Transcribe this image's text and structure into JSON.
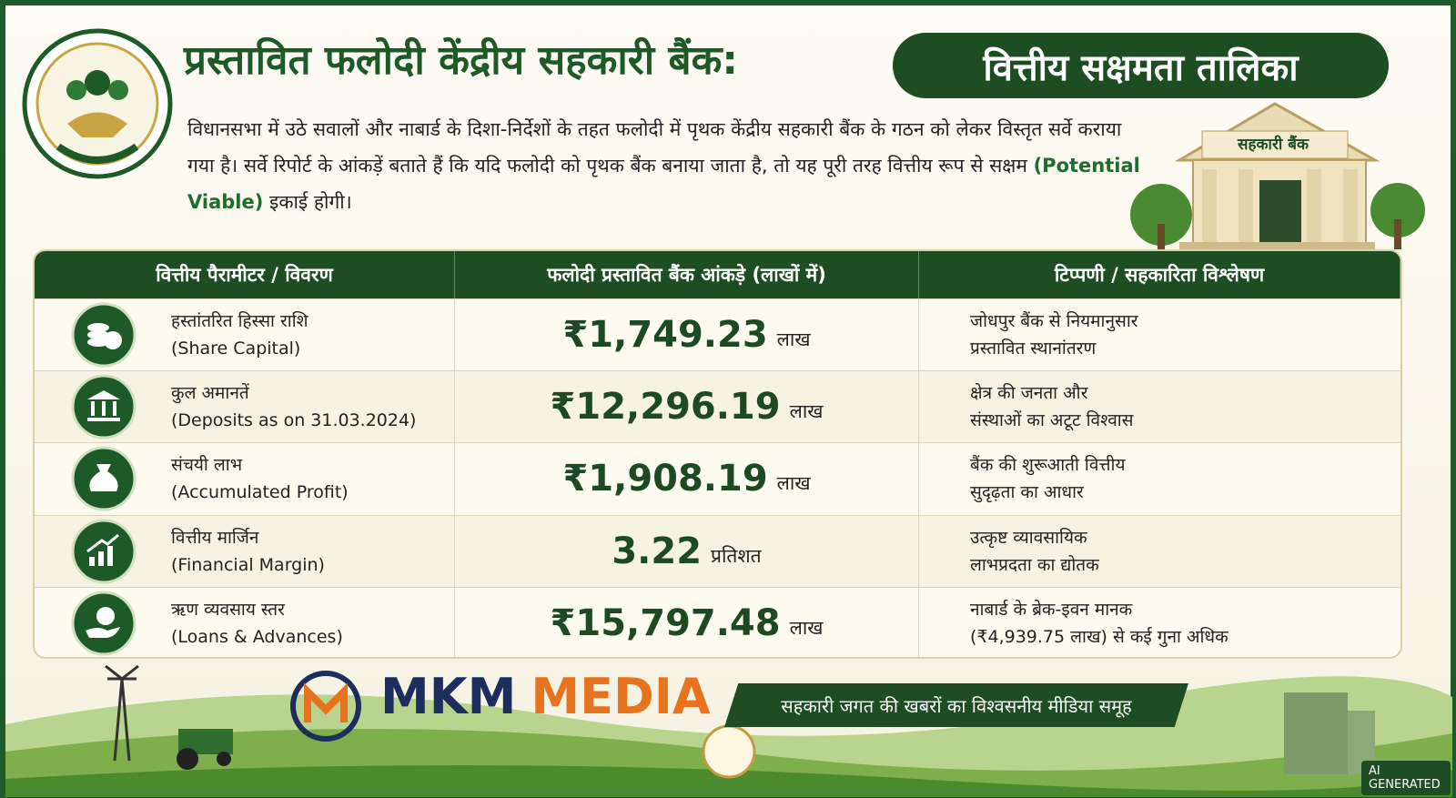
{
  "header": {
    "title": "प्रस्तावित फलोदी केंद्रीय सहकारी बैंक:",
    "title_badge": "वित्तीय सक्षमता तालिका",
    "intro": [
      "विधानसभा में उठे सवालों और नाबार्ड के दिशा-निर्देशों के तहत फलोदी में पृथक केंद्रीय सहकारी बैंक के गठन को लेकर विस्तृत सर्वे कराया गया है। सर्वे रिपोर्ट के आंकड़ें बताते हैं कि यदि फलोदी को पृथक बैंक बनाया जाता है, तो यह पूरी तरह वित्तीय रूप से सक्षम ",
      "(Potential Viable)",
      " इकाई होगी।"
    ],
    "building_sign": "सहकारी बैंक"
  },
  "table": {
    "columns": [
      "वित्तीय पैरामीटर / विवरण",
      "फलोदी प्रस्तावित बैंक आंकड़े (लाखों में)",
      "टिप्पणी / सहकारिता विश्लेषण"
    ],
    "rows": [
      {
        "label_hi": "हस्तांतरित हिस्सा राशि",
        "label_en": "(Share Capital)",
        "value": "₹1,749.23",
        "unit": "लाख",
        "note": [
          "जोधपुर बैंक से नियमानुसार",
          "प्रस्तावित स्थानांतरण"
        ]
      },
      {
        "label_hi": "कुल अमानतें",
        "label_en": "(Deposits as on 31.03.2024)",
        "value": "₹12,296.19",
        "unit": "लाख",
        "note": [
          "क्षेत्र की जनता और",
          "संस्थाओं का अटूट विश्वास"
        ]
      },
      {
        "label_hi": "संचयी लाभ",
        "label_en": "(Accumulated Profit)",
        "value": "₹1,908.19",
        "unit": "लाख",
        "note": [
          "बैंक की शुरूआती वित्तीय",
          "सुदृढ़ता का आधार"
        ]
      },
      {
        "label_hi": "वित्तीय मार्जिन",
        "label_en": "(Financial Margin)",
        "value": "3.22",
        "unit": "प्रतिशत",
        "note": [
          "उत्कृष्ट व्यावसायिक",
          "लाभप्रदता का द्योतक"
        ]
      },
      {
        "label_hi": "ऋण व्यवसाय स्तर",
        "label_en": "(Loans & Advances)",
        "value": "₹15,797.48",
        "unit": "लाख",
        "note": [
          "नाबार्ड के ब्रेक-इवन मानक",
          "(₹4,939.75 लाख) से कई गुना अधिक"
        ]
      }
    ]
  },
  "footer": {
    "brand": [
      "MKM",
      "MEDIA"
    ],
    "tagline": "सहकारी जगत की खबरों का विश्वसनीय मीडिया समूह",
    "watermark": "AI GENERATED"
  }
}
